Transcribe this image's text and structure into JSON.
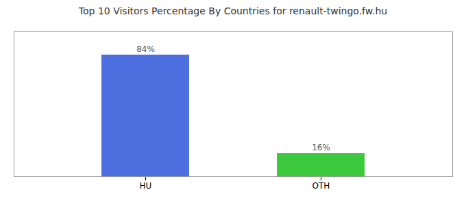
{
  "chart_data": {
    "type": "bar",
    "title": "Top 10 Visitors Percentage By Countries for renault-twingo.fw.hu",
    "categories": [
      "HU",
      "OTH"
    ],
    "values": [
      84,
      16
    ],
    "value_labels": [
      "84%",
      "16%"
    ],
    "colors": [
      "#4d6fe0",
      "#3dc93d"
    ],
    "ylim": [
      0,
      100
    ],
    "data_labels": true,
    "tick_labels": "x",
    "grid": false
  }
}
